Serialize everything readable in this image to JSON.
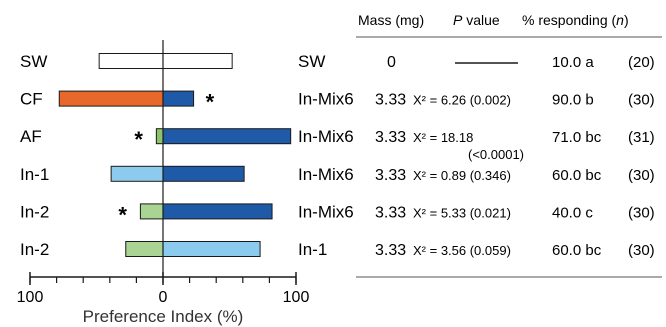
{
  "chart_data": {
    "type": "bar",
    "xlabel": "Preference Index (%)",
    "xlim": [
      -100,
      100
    ],
    "x_ticks": [
      {
        "value": -100,
        "label": "100"
      },
      {
        "value": 0,
        "label": "0"
      },
      {
        "value": 100,
        "label": "100"
      }
    ],
    "header": {
      "mass": "Mass (mg)",
      "p_italic": "P",
      "p_rest": " value",
      "responding": "% responding (",
      "n_italic": "n",
      "responding_close": ")"
    },
    "rows": [
      {
        "left_label": "SW",
        "right_label": "SW",
        "left_value": -48,
        "right_value": 52,
        "left_color": "#ffffff",
        "right_color": "#ffffff",
        "star": "",
        "mass": "0",
        "p_line": "",
        "p_line2": "",
        "p_dash": true,
        "responding": "10.0 a",
        "n": "(20)"
      },
      {
        "left_label": "CF",
        "right_label": "In-Mix6",
        "left_value": -78,
        "right_value": 23,
        "left_color": "#e8672a",
        "right_color": "#1f5aa8",
        "star": "right",
        "mass": "3.33",
        "p_line": "Χ² = 6.26 (0.002)",
        "p_line2": "",
        "p_dash": false,
        "responding": "90.0 b",
        "n": "(30)"
      },
      {
        "left_label": "AF",
        "right_label": "In-Mix6",
        "left_value": -5,
        "right_value": 96,
        "left_color": "#8cc46a",
        "right_color": "#1f5aa8",
        "star": "left",
        "mass": "3.33",
        "p_line": "Χ² = 18.18",
        "p_line2": "(<0.0001)",
        "p_dash": false,
        "responding": "71.0 bc",
        "n": "(31)"
      },
      {
        "left_label": "In-1",
        "right_label": "In-Mix6",
        "left_value": -39,
        "right_value": 61,
        "left_color": "#8ccbee",
        "right_color": "#1f5aa8",
        "star": "",
        "mass": "3.33",
        "p_line": "Χ² = 0.89 (0.346)",
        "p_line2": "",
        "p_dash": false,
        "responding": "60.0 bc",
        "n": "(30)"
      },
      {
        "left_label": "In-2",
        "right_label": "In-Mix6",
        "left_value": -17,
        "right_value": 82,
        "left_color": "#a9d494",
        "right_color": "#1f5aa8",
        "star": "left",
        "mass": "3.33",
        "p_line": "Χ² = 5.33 (0.021)",
        "p_line2": "",
        "p_dash": false,
        "responding": "40.0 c",
        "n": "(30)"
      },
      {
        "left_label": "In-2",
        "right_label": "In-1",
        "left_value": -28,
        "right_value": 73,
        "left_color": "#a9d494",
        "right_color": "#8ccbee",
        "star": "",
        "mass": "3.33",
        "p_line": "Χ² = 3.56 (0.059)",
        "p_line2": "",
        "p_dash": false,
        "responding": "60.0 bc",
        "n": "(30)"
      }
    ],
    "grid": false,
    "star_symbol": "*"
  }
}
